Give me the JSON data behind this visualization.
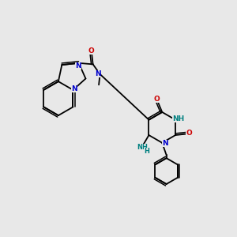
{
  "bg_color": "#e8e8e8",
  "bond_color": "#000000",
  "N_color": "#0000cc",
  "O_color": "#cc0000",
  "NH_color": "#008080",
  "font_size": 6.5,
  "line_width": 1.3,
  "figsize": [
    3.0,
    3.0
  ],
  "dpi": 100,
  "xlim": [
    0,
    10
  ],
  "ylim": [
    0,
    10
  ]
}
